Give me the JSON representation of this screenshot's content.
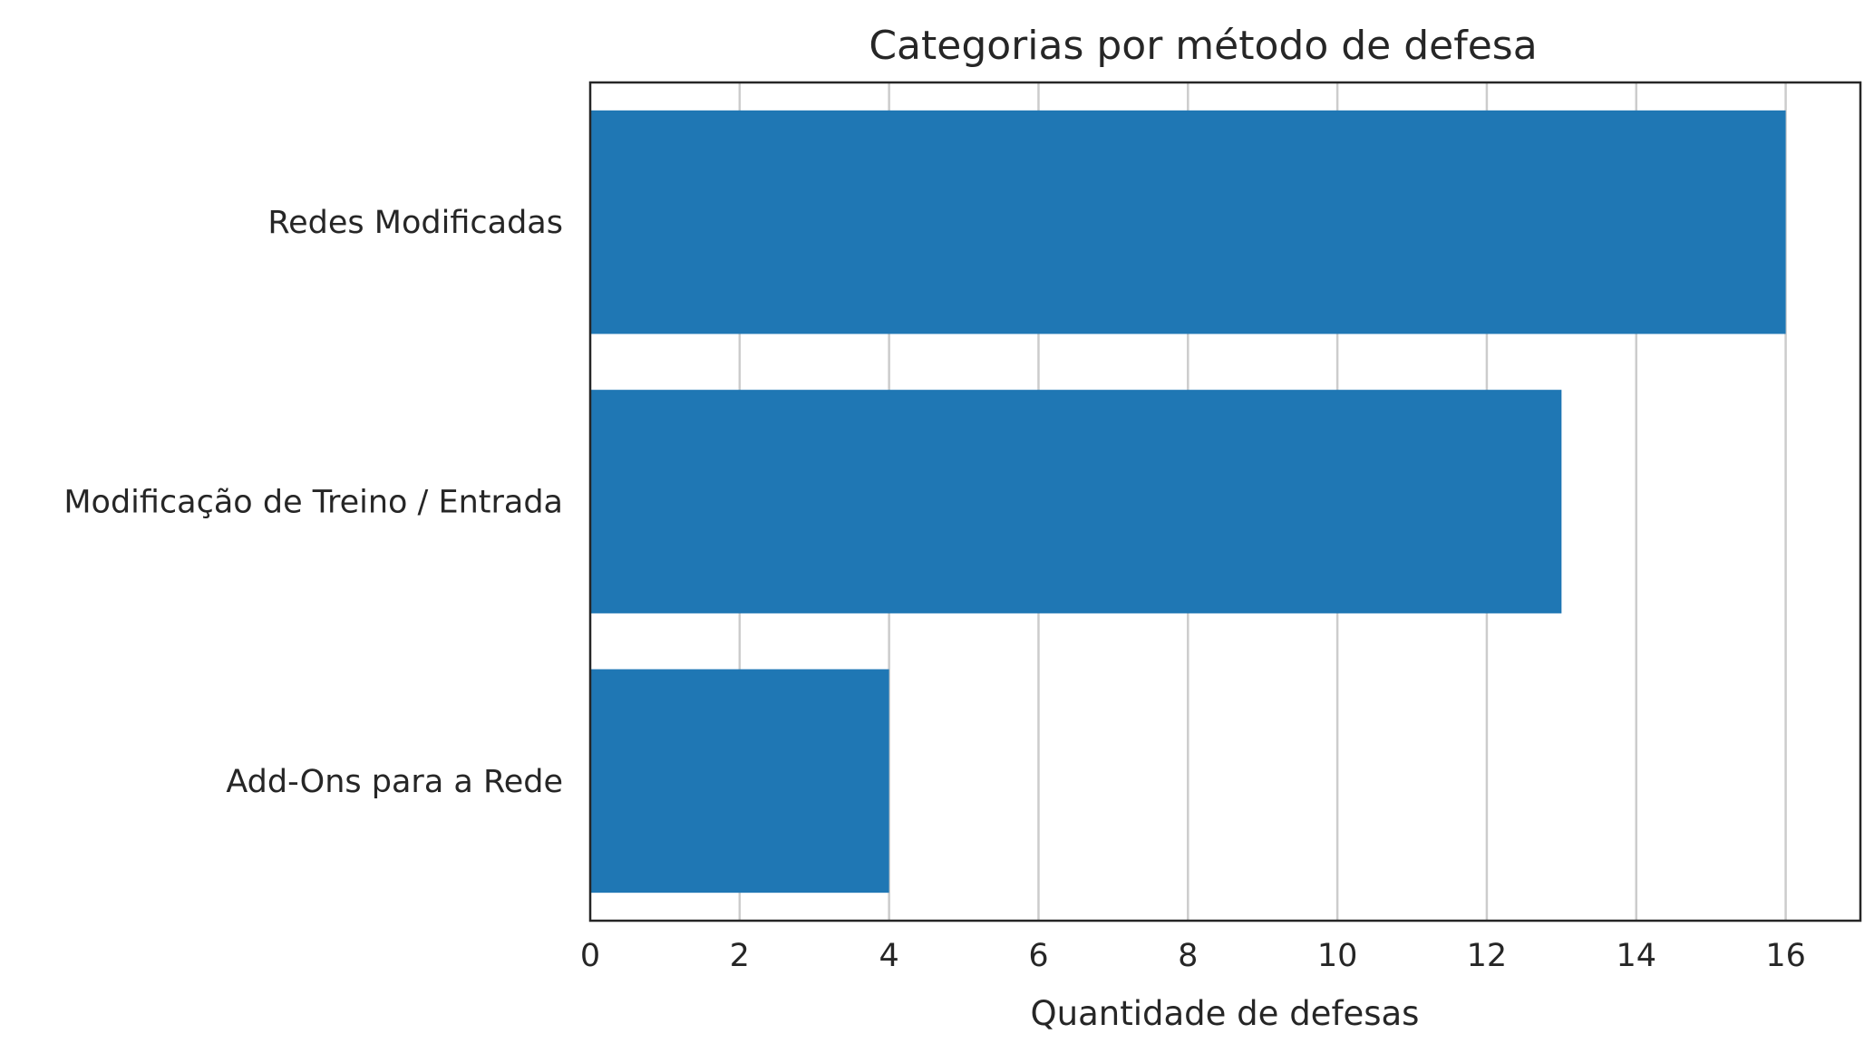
{
  "chart_data": {
    "type": "bar",
    "orientation": "horizontal",
    "title": "Categorias por método de defesa",
    "xlabel": "Quantidade de defesas",
    "ylabel": "",
    "categories": [
      "Redes Modificadas",
      "Modificação de Treino / Entrada",
      "Add-Ons para a Rede"
    ],
    "values": [
      16,
      13,
      4
    ],
    "xlim": [
      0,
      17
    ],
    "xticks": [
      0,
      2,
      4,
      6,
      8,
      10,
      12,
      14,
      16
    ],
    "grid": "vertical",
    "bar_color": "#1f77b4"
  }
}
